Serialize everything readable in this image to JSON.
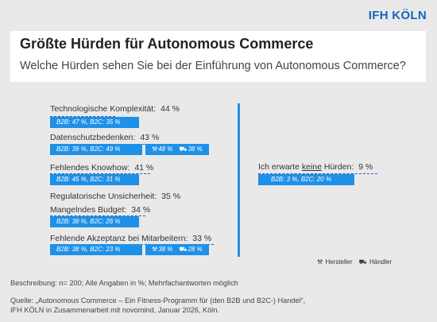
{
  "logo_text": "IFH KÖLN",
  "title": "Größte Hürden für Autonomous Commerce",
  "subtitle": "Welche Hürden sehen Sie bei der Einführung von Autonomous Commerce?",
  "colors": {
    "accent": "#1e90e8",
    "dark_blue": "#1565c0",
    "background": "#e9e9e9"
  },
  "chart_data": {
    "type": "table",
    "items": [
      {
        "label": "Technologische Komplexität:",
        "total": "44 %",
        "b2b": "B2B: 47 %",
        "b2c": "B2C: 35 %"
      },
      {
        "label": "Datenschutzbedenken:",
        "total": "43 %",
        "b2b": "B2B: 39 %",
        "b2c": "B2C: 49 %",
        "hersteller": "48 %",
        "haendler": "38 %"
      },
      {
        "label": "Fehlendes Knowhow:",
        "total": "41 %",
        "b2b": "B2B: 45 %",
        "b2c": "B2C: 31 %"
      },
      {
        "label": "Regulatorische Unsicherheit:",
        "total": "35 %"
      },
      {
        "label": "Mangelndes Budget:",
        "total": "34 %",
        "b2b": "B2B: 38 %",
        "b2c": "B2C: 26 %"
      },
      {
        "label": "Fehlende Akzeptanz bei Mitarbeitern:",
        "total": "33 %",
        "b2b": "B2B: 38 %",
        "b2c": "B2C: 23 %",
        "hersteller": "38 %",
        "haendler": "28 %"
      }
    ],
    "right_item": {
      "label_pre": "Ich erwarte ",
      "label_keyword": "keine",
      "label_post": " Hürden:",
      "total": "9 %",
      "b2b": "B2B: 3 %",
      "b2c": "B2C: 20 %"
    },
    "legend": {
      "hersteller": "Hersteller",
      "haendler": "Händler"
    },
    "icons": {
      "hersteller": "hammer-wrench-icon",
      "haendler": "cart-icon"
    }
  },
  "note": "Beschreibung: n= 200; Alle Angaben in %; Mehrfachantworten möglich",
  "source_line1": "Quelle: „Autonomous Commerce – Ein Fitness-Programm für (den B2B und B2C-) Handel“,",
  "source_line2": "IFH KÖLN in Zusammenarbeit mit novomind, Januar 2026, Köln."
}
